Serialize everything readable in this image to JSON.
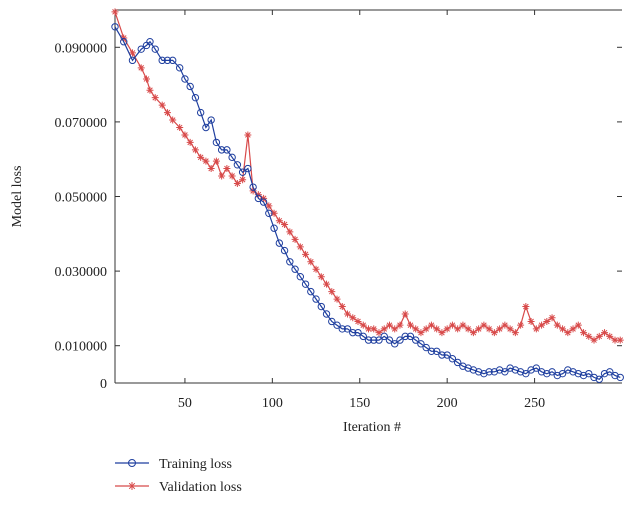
{
  "chart_data": {
    "type": "line",
    "title": "",
    "xlabel": "Iteration #",
    "ylabel": "Model loss",
    "xlim": [
      10,
      300
    ],
    "ylim": [
      0,
      0.1
    ],
    "x_ticks": [
      50,
      100,
      150,
      200,
      250
    ],
    "x_tick_labels": [
      "50",
      "100",
      "150",
      "200",
      "250"
    ],
    "y_ticks": [
      0,
      0.01,
      0.03,
      0.05,
      0.07,
      0.09
    ],
    "y_tick_labels": [
      "0",
      "0.010000",
      "0.030000",
      "0.050000",
      "0.070000",
      "0.090000"
    ],
    "grid": false,
    "legend_position": "bottom-left",
    "series": [
      {
        "name": "Training loss",
        "color": "#1f3f9f",
        "marker": "circle",
        "x": [
          10,
          15,
          20,
          25,
          28,
          30,
          33,
          37,
          40,
          43,
          47,
          50,
          53,
          56,
          59,
          62,
          65,
          68,
          71,
          74,
          77,
          80,
          83,
          86,
          89,
          92,
          95,
          98,
          101,
          104,
          107,
          110,
          113,
          116,
          119,
          122,
          125,
          128,
          131,
          134,
          137,
          140,
          143,
          146,
          149,
          152,
          155,
          158,
          161,
          164,
          167,
          170,
          173,
          176,
          179,
          182,
          185,
          188,
          191,
          194,
          197,
          200,
          203,
          206,
          209,
          212,
          215,
          218,
          221,
          224,
          227,
          230,
          233,
          236,
          239,
          242,
          245,
          248,
          251,
          254,
          257,
          260,
          263,
          266,
          269,
          272,
          275,
          278,
          281,
          284,
          287,
          290,
          293,
          296,
          299
        ],
        "values": [
          0.0955,
          0.0915,
          0.0865,
          0.0895,
          0.0905,
          0.0915,
          0.0895,
          0.0865,
          0.0865,
          0.0865,
          0.0845,
          0.0815,
          0.0795,
          0.0765,
          0.0725,
          0.0685,
          0.0705,
          0.0645,
          0.0625,
          0.0625,
          0.0605,
          0.0585,
          0.0565,
          0.0575,
          0.0525,
          0.0495,
          0.0485,
          0.0455,
          0.0415,
          0.0375,
          0.0355,
          0.0325,
          0.0305,
          0.0285,
          0.0265,
          0.0245,
          0.0225,
          0.0205,
          0.0185,
          0.0165,
          0.0155,
          0.0145,
          0.0145,
          0.0135,
          0.0135,
          0.0125,
          0.0115,
          0.0115,
          0.0115,
          0.0125,
          0.0115,
          0.0105,
          0.0115,
          0.0125,
          0.0125,
          0.0115,
          0.0105,
          0.0095,
          0.0085,
          0.0085,
          0.0075,
          0.0075,
          0.0065,
          0.0055,
          0.0045,
          0.004,
          0.0035,
          0.003,
          0.0025,
          0.003,
          0.003,
          0.0035,
          0.003,
          0.004,
          0.0035,
          0.003,
          0.0025,
          0.0035,
          0.004,
          0.003,
          0.0025,
          0.003,
          0.002,
          0.0025,
          0.0035,
          0.003,
          0.0025,
          0.002,
          0.0025,
          0.0015,
          0.001,
          0.0025,
          0.003,
          0.002,
          0.0015
        ]
      },
      {
        "name": "Validation loss",
        "color": "#d84a4a",
        "marker": "star",
        "x": [
          10,
          15,
          20,
          25,
          28,
          30,
          33,
          37,
          40,
          43,
          47,
          50,
          53,
          56,
          59,
          62,
          65,
          68,
          71,
          74,
          77,
          80,
          83,
          86,
          89,
          92,
          95,
          98,
          101,
          104,
          107,
          110,
          113,
          116,
          119,
          122,
          125,
          128,
          131,
          134,
          137,
          140,
          143,
          146,
          149,
          152,
          155,
          158,
          161,
          164,
          167,
          170,
          173,
          176,
          179,
          182,
          185,
          188,
          191,
          194,
          197,
          200,
          203,
          206,
          209,
          212,
          215,
          218,
          221,
          224,
          227,
          230,
          233,
          236,
          239,
          242,
          245,
          248,
          251,
          254,
          257,
          260,
          263,
          266,
          269,
          272,
          275,
          278,
          281,
          284,
          287,
          290,
          293,
          296,
          299
        ],
        "values": [
          0.0995,
          0.0925,
          0.0885,
          0.0845,
          0.0815,
          0.0785,
          0.0765,
          0.0745,
          0.0725,
          0.0705,
          0.0685,
          0.0665,
          0.0645,
          0.0625,
          0.0605,
          0.0595,
          0.0575,
          0.0595,
          0.0555,
          0.0575,
          0.0555,
          0.0535,
          0.0545,
          0.0665,
          0.0515,
          0.0505,
          0.0495,
          0.0475,
          0.0455,
          0.0435,
          0.0425,
          0.0405,
          0.0385,
          0.0365,
          0.0345,
          0.0325,
          0.0305,
          0.0285,
          0.0265,
          0.0245,
          0.0225,
          0.0205,
          0.0185,
          0.0175,
          0.0165,
          0.0155,
          0.0145,
          0.0145,
          0.0135,
          0.0145,
          0.0155,
          0.0145,
          0.0155,
          0.0185,
          0.0155,
          0.0145,
          0.0135,
          0.0145,
          0.0155,
          0.0145,
          0.0135,
          0.0145,
          0.0155,
          0.0145,
          0.0155,
          0.0145,
          0.0135,
          0.0145,
          0.0155,
          0.0145,
          0.0135,
          0.0145,
          0.0155,
          0.0145,
          0.0135,
          0.0155,
          0.0205,
          0.0165,
          0.0145,
          0.0155,
          0.0165,
          0.0175,
          0.0155,
          0.0145,
          0.0135,
          0.0145,
          0.0155,
          0.0135,
          0.0125,
          0.0115,
          0.0125,
          0.0135,
          0.0125,
          0.0115,
          0.0115
        ]
      }
    ]
  }
}
